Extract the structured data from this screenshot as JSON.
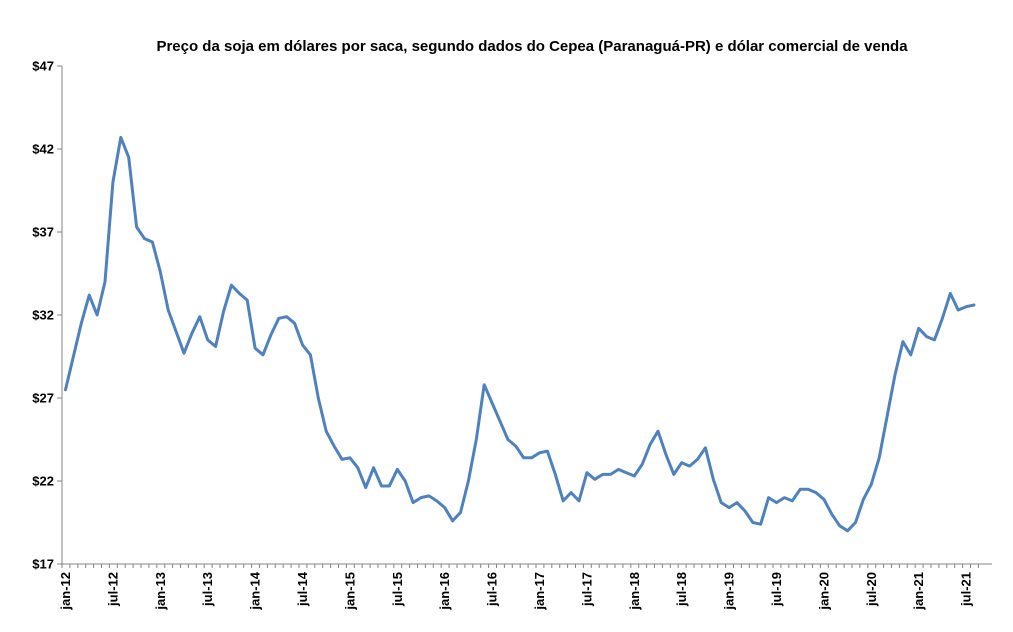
{
  "chart_data": {
    "type": "line",
    "title": "Preço da soja em dólares por saca, segundo dados do Cepea (Paranaguá-PR) e dólar comercial de venda",
    "xlabel": "",
    "ylabel": "",
    "ylim": [
      17,
      47
    ],
    "y_ticks": [
      17,
      22,
      27,
      32,
      37,
      42,
      47
    ],
    "y_tick_labels": [
      "$17",
      "$22",
      "$27",
      "$32",
      "$37",
      "$42",
      "$47"
    ],
    "x_tick_labels": [
      "jan-12",
      "jul-12",
      "jan-13",
      "jul-13",
      "jan-14",
      "jul-14",
      "jan-15",
      "jul-15",
      "jan-16",
      "jul-16",
      "jan-17",
      "jul-17",
      "jan-18",
      "jul-18",
      "jan-19",
      "jul-19",
      "jan-20",
      "jul-20",
      "jan-21",
      "jul-21"
    ],
    "grid": false,
    "legend": "none",
    "line_color": "#4F81BD",
    "series": [
      {
        "values": [
          27.5,
          29.5,
          31.5,
          33.2,
          32.0,
          34.0,
          40.0,
          42.7,
          41.5,
          37.3,
          36.6,
          36.4,
          34.6,
          32.3,
          31.0,
          29.7,
          30.9,
          31.9,
          30.5,
          30.1,
          32.2,
          33.8,
          33.3,
          32.9,
          30.0,
          29.6,
          30.8,
          31.8,
          31.9,
          31.5,
          30.2,
          29.6,
          27.0,
          25.0,
          24.1,
          23.3,
          23.4,
          22.8,
          21.6,
          22.8,
          21.7,
          21.7,
          22.7,
          22.0,
          20.7,
          21.0,
          21.1,
          20.8,
          20.4,
          19.6,
          20.1,
          22.0,
          24.5,
          27.8,
          26.7,
          25.6,
          24.5,
          24.1,
          23.4,
          23.4,
          23.7,
          23.8,
          22.4,
          20.8,
          21.3,
          20.8,
          22.5,
          22.1,
          22.4,
          22.4,
          22.7,
          22.5,
          22.3,
          23.0,
          24.2,
          25.0,
          23.6,
          22.4,
          23.1,
          22.9,
          23.3,
          24.0,
          22.1,
          20.7,
          20.4,
          20.7,
          20.2,
          19.5,
          19.4,
          21.0,
          20.7,
          21.0,
          20.8,
          21.5,
          21.5,
          21.3,
          20.9,
          20.0,
          19.3,
          19.0,
          19.5,
          20.9,
          21.8,
          23.4,
          25.9,
          28.4,
          30.4,
          29.6,
          31.2,
          30.7,
          30.5,
          31.8,
          33.3,
          32.3,
          32.5,
          32.6
        ]
      }
    ]
  }
}
